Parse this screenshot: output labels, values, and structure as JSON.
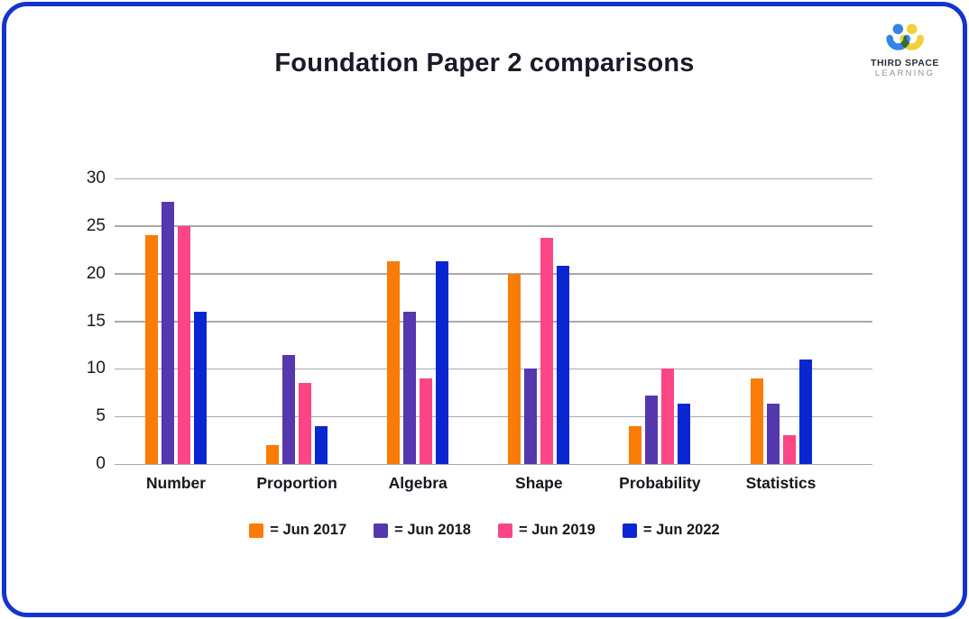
{
  "page": {
    "border_color": "#1534cb",
    "logo": {
      "line1": "THIRD SPACE",
      "line2": "LEARNING",
      "icon": "two-people-icon",
      "icon_colors": {
        "left_person": "#3485e6",
        "right_person": "#f2cf3c",
        "overlap": "#2ea58c"
      }
    }
  },
  "chart_data": {
    "type": "bar",
    "title": "Foundation Paper 2 comparisons",
    "categories": [
      "Number",
      "Proportion",
      "Algebra",
      "Shape",
      "Probability",
      "Statistics"
    ],
    "series": [
      {
        "name": "Jun 2017",
        "color": "#FA7B05",
        "values": [
          24,
          2,
          21.3,
          20,
          4,
          9
        ]
      },
      {
        "name": "Jun 2018",
        "color": "#5537AE",
        "values": [
          27.5,
          11.5,
          16,
          10,
          7.2,
          6.3
        ]
      },
      {
        "name": "Jun 2019",
        "color": "#FB4587",
        "values": [
          25,
          8.5,
          9,
          23.8,
          10,
          3
        ]
      },
      {
        "name": "Jun 2022",
        "color": "#0926D2",
        "values": [
          16,
          4,
          21.3,
          20.8,
          6.3,
          11
        ]
      }
    ],
    "legend_labels": [
      "= Jun 2017",
      "= Jun 2018",
      "= Jun 2019",
      "= Jun 2022"
    ],
    "xlabel": "",
    "ylabel": "",
    "ylim": [
      0,
      30
    ],
    "yticks": [
      0,
      5,
      10,
      15,
      20,
      25,
      30
    ],
    "grid": true,
    "legend_position": "bottom"
  }
}
